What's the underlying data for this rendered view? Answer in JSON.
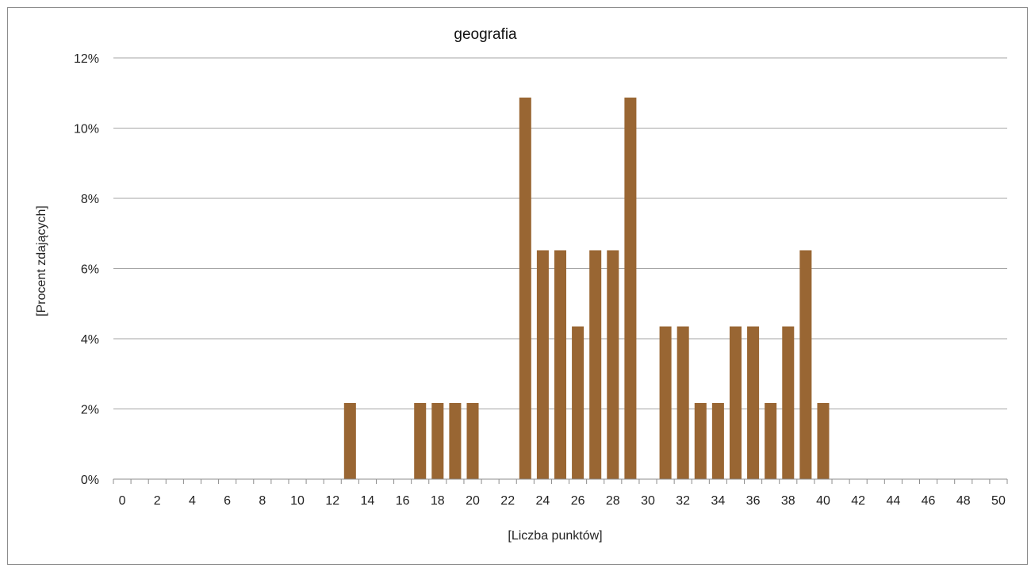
{
  "chart_data": {
    "type": "bar",
    "title": "geografia",
    "xlabel": "[Liczba punktów]",
    "ylabel": "[Procent zdających]",
    "x": [
      0,
      1,
      2,
      3,
      4,
      5,
      6,
      7,
      8,
      9,
      10,
      11,
      12,
      13,
      14,
      15,
      16,
      17,
      18,
      19,
      20,
      21,
      22,
      23,
      24,
      25,
      26,
      27,
      28,
      29,
      30,
      31,
      32,
      33,
      34,
      35,
      36,
      37,
      38,
      39,
      40,
      41,
      42,
      43,
      44,
      45,
      46,
      47,
      48,
      49,
      50
    ],
    "values": [
      0,
      0,
      0,
      0,
      0,
      0,
      0,
      0,
      0,
      0,
      0,
      0,
      0,
      2.17,
      0,
      0,
      0,
      2.17,
      2.17,
      2.17,
      2.17,
      0,
      0,
      10.87,
      6.52,
      6.52,
      4.35,
      6.52,
      6.52,
      10.87,
      0,
      4.35,
      4.35,
      2.17,
      2.17,
      4.35,
      4.35,
      2.17,
      4.35,
      6.52,
      2.17,
      0,
      0,
      0,
      0,
      0,
      0,
      0,
      0,
      0,
      0
    ],
    "x_tick_labels": [
      "0",
      "2",
      "4",
      "6",
      "8",
      "10",
      "12",
      "14",
      "16",
      "18",
      "20",
      "22",
      "24",
      "26",
      "28",
      "30",
      "32",
      "34",
      "36",
      "38",
      "40",
      "42",
      "44",
      "46",
      "48",
      "50"
    ],
    "y_tick_labels": [
      "0%",
      "2%",
      "4%",
      "6%",
      "8%",
      "10%",
      "12%"
    ],
    "ylim": [
      0,
      12
    ],
    "grid": true,
    "bar_color": "#996633",
    "gridline_color": "#a6a6a6"
  }
}
